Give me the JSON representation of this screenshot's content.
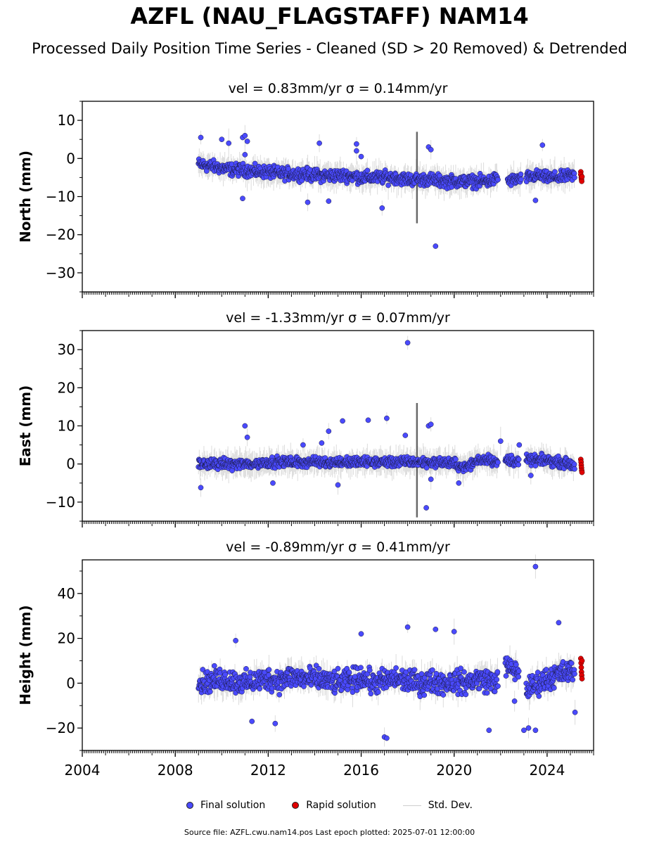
{
  "figure": {
    "title": "AZFL (NAU_FLAGSTAFF) NAM14",
    "subtitle": "Processed Daily Position Time Series - Cleaned (SD > 20 Removed) & Detrended",
    "footer": "Source file: AZFL.cwu.nam14.pos  Last epoch plotted: 2025-07-01 12:00:00"
  },
  "legend": [
    {
      "label": "Final solution",
      "color": "#4a4aff",
      "marker": "dot"
    },
    {
      "label": "Rapid solution",
      "color": "#e00000",
      "marker": "dot"
    },
    {
      "label": "Std. Dev.",
      "color": "#cfcfcf",
      "marker": "line"
    }
  ],
  "colors": {
    "final": "#4a4aff",
    "rapid": "#e00000",
    "stddev": "#9a9a9a",
    "outline": "#1a1a40"
  },
  "chart_data": [
    {
      "type": "scatter",
      "title": "vel = 0.83mm/yr   σ = 0.14mm/yr",
      "ylabel": "North (mm)",
      "xlim": [
        2004,
        2026
      ],
      "ylim": [
        -35,
        15
      ],
      "yticks": [
        "10",
        "0",
        "−10",
        "−20",
        "−30"
      ],
      "ytick_values": [
        10,
        0,
        -10,
        -20,
        -30
      ],
      "xticks": [
        2004,
        2008,
        2012,
        2016,
        2020,
        2024
      ],
      "show_xtick_labels": false,
      "series": [
        {
          "name": "Final solution",
          "segments": [
            {
              "x": [
                2009.0,
                2009.5,
                2010.0,
                2010.5,
                2011.0,
                2011.5,
                2012.0,
                2012.5,
                2013.0,
                2013.5,
                2014.0,
                2014.5,
                2015.0,
                2015.5,
                2016.0,
                2016.5,
                2017.0,
                2017.5,
                2018.0,
                2018.5,
                2019.0,
                2019.5,
                2020.0,
                2020.5,
                2021.0,
                2021.5,
                2021.9
              ],
              "y": [
                -1.5,
                -2,
                -2.5,
                -3,
                -3,
                -3.5,
                -3.5,
                -4,
                -4,
                -4,
                -4.5,
                -4.5,
                -4.5,
                -4.5,
                -5,
                -5,
                -5,
                -5,
                -5.5,
                -5.5,
                -5.5,
                -6,
                -6,
                -6,
                -6,
                -6,
                -5
              ],
              "spread": 2.2
            },
            {
              "x": [
                2022.3,
                2022.6,
                2022.9
              ],
              "y": [
                -6,
                -5.5,
                -5.5
              ],
              "spread": 2.0
            },
            {
              "x": [
                2023.1,
                2023.6,
                2024.0,
                2024.5,
                2025.0,
                2025.2
              ],
              "y": [
                -5,
                -4.5,
                -5,
                -5,
                -4.5,
                -4.5
              ],
              "spread": 2.0
            }
          ],
          "outliers": [
            [
              2009.1,
              5.5
            ],
            [
              2010.0,
              5
            ],
            [
              2010.3,
              4
            ],
            [
              2010.9,
              5.5
            ],
            [
              2011.0,
              6
            ],
            [
              2011.1,
              4.5
            ],
            [
              2011.0,
              1
            ],
            [
              2010.9,
              -10.5
            ],
            [
              2014.2,
              4
            ],
            [
              2015.8,
              3.8
            ],
            [
              2015.8,
              2
            ],
            [
              2016.0,
              0.5
            ],
            [
              2016.9,
              -13
            ],
            [
              2018.9,
              3
            ],
            [
              2019.0,
              2.3
            ],
            [
              2019.2,
              -23
            ],
            [
              2013.7,
              -11.5
            ],
            [
              2014.6,
              -11.2
            ],
            [
              2023.8,
              3.5
            ],
            [
              2023.5,
              -11
            ]
          ]
        },
        {
          "name": "Rapid solution",
          "x": [
            2025.45,
            2025.45,
            2025.47,
            2025.48,
            2025.49,
            2025.5
          ],
          "y": [
            -3.5,
            -4.2,
            -5,
            -5.5,
            -6,
            -4.8
          ]
        }
      ],
      "stddev_spike": {
        "x": 2018.4,
        "ymin": -17,
        "ymax": 7
      }
    },
    {
      "type": "scatter",
      "title": "vel = -1.33mm/yr   σ = 0.07mm/yr",
      "ylabel": "East (mm)",
      "xlim": [
        2004,
        2026
      ],
      "ylim": [
        -15,
        35
      ],
      "yticks": [
        "30",
        "20",
        "10",
        "0",
        "−10"
      ],
      "ytick_values": [
        30,
        20,
        10,
        0,
        -10
      ],
      "xticks": [
        2004,
        2008,
        2012,
        2016,
        2020,
        2024
      ],
      "show_xtick_labels": false,
      "series": [
        {
          "name": "Final solution",
          "segments": [
            {
              "x": [
                2009.0,
                2009.5,
                2010.0,
                2010.5,
                2011.0,
                2011.5,
                2012.0,
                2012.5,
                2013.0,
                2013.5,
                2014.0,
                2014.5,
                2015.0,
                2015.5,
                2016.0,
                2016.5,
                2017.0,
                2017.5,
                2018.0,
                2018.5,
                2019.0,
                2019.5,
                2020.0,
                2020.5,
                2021.0,
                2021.5,
                2021.9
              ],
              "y": [
                0,
                0,
                0,
                0,
                0,
                0,
                0.5,
                0.5,
                0.5,
                0.5,
                0.5,
                0.5,
                0.5,
                0.5,
                0.5,
                0.5,
                0.5,
                0.5,
                0.5,
                0.5,
                0.5,
                0.5,
                0,
                -1,
                1,
                1.5,
                0
              ],
              "spread": 1.8
            },
            {
              "x": [
                2022.2,
                2022.5,
                2022.8
              ],
              "y": [
                1,
                1,
                0.5
              ],
              "spread": 2.0
            },
            {
              "x": [
                2023.1,
                2023.6,
                2024.0,
                2024.5,
                2025.0,
                2025.2
              ],
              "y": [
                1,
                1,
                1,
                0.5,
                0,
                -0.5
              ],
              "spread": 1.8
            }
          ],
          "outliers": [
            [
              2009.1,
              -6.2
            ],
            [
              2011.0,
              10
            ],
            [
              2011.1,
              7
            ],
            [
              2012.2,
              -5
            ],
            [
              2013.5,
              5
            ],
            [
              2014.3,
              5.5
            ],
            [
              2014.6,
              8.6
            ],
            [
              2015.2,
              11.3
            ],
            [
              2015.0,
              -5.5
            ],
            [
              2016.3,
              11.5
            ],
            [
              2017.1,
              12
            ],
            [
              2017.9,
              7.5
            ],
            [
              2018.0,
              31.8
            ],
            [
              2018.9,
              10
            ],
            [
              2019.0,
              10.4
            ],
            [
              2018.8,
              -11.5
            ],
            [
              2019.0,
              -4
            ],
            [
              2020.2,
              -5
            ],
            [
              2022.0,
              6
            ],
            [
              2022.8,
              5
            ],
            [
              2023.3,
              -3
            ]
          ]
        },
        {
          "name": "Rapid solution",
          "x": [
            2025.45,
            2025.46,
            2025.47,
            2025.48,
            2025.49,
            2025.5
          ],
          "y": [
            1.2,
            0.5,
            -0.3,
            -1,
            -1.7,
            -2.2
          ]
        }
      ],
      "stddev_spike": {
        "x": 2018.4,
        "ymin": -14,
        "ymax": 16
      }
    },
    {
      "type": "scatter",
      "title": "vel = -0.89mm/yr   σ = 0.41mm/yr",
      "ylabel": "Height (mm)",
      "xlim": [
        2004,
        2026
      ],
      "ylim": [
        -30,
        55
      ],
      "yticks": [
        "40",
        "20",
        "0",
        "−20"
      ],
      "ytick_values": [
        40,
        20,
        0,
        -20
      ],
      "xticks": [
        2004,
        2008,
        2012,
        2016,
        2020,
        2024
      ],
      "xtick_labels": [
        "2004",
        "2008",
        "2012",
        "2016",
        "2020",
        "2024"
      ],
      "show_xtick_labels": true,
      "series": [
        {
          "name": "Final solution",
          "segments": [
            {
              "x": [
                2009.0,
                2009.5,
                2010.0,
                2010.5,
                2011.0,
                2011.5,
                2012.0,
                2012.5,
                2013.0,
                2013.5,
                2014.0,
                2014.5,
                2015.0,
                2015.5,
                2016.0,
                2016.5,
                2017.0,
                2017.5,
                2018.0,
                2018.5,
                2019.0,
                2019.5,
                2020.0,
                2020.5,
                2021.0,
                2021.5,
                2021.9
              ],
              "y": [
                0,
                1,
                2,
                1,
                0,
                1,
                2,
                1,
                3,
                2,
                2,
                1,
                0,
                1,
                3,
                0,
                1,
                2,
                1,
                0,
                1,
                0,
                1,
                0,
                2,
                1,
                1
              ],
              "spread": 7
            },
            {
              "x": [
                2022.2,
                2022.5,
                2022.8
              ],
              "y": [
                8,
                6,
                5
              ],
              "spread": 6
            },
            {
              "x": [
                2023.1,
                2023.6,
                2024.0,
                2024.5,
                2025.0,
                2025.2
              ],
              "y": [
                -3,
                0,
                2,
                4,
                5,
                6
              ],
              "spread": 7
            }
          ],
          "outliers": [
            [
              2010.6,
              19
            ],
            [
              2011.3,
              -17
            ],
            [
              2012.3,
              -18
            ],
            [
              2016.0,
              22
            ],
            [
              2017.0,
              -24
            ],
            [
              2017.1,
              -24.5
            ],
            [
              2018.0,
              25
            ],
            [
              2019.2,
              24
            ],
            [
              2020.0,
              23
            ],
            [
              2021.5,
              -21
            ],
            [
              2022.6,
              -8
            ],
            [
              2023.0,
              -21
            ],
            [
              2023.2,
              -20
            ],
            [
              2023.5,
              -21
            ],
            [
              2023.5,
              52
            ],
            [
              2024.5,
              27
            ],
            [
              2025.2,
              -13
            ]
          ]
        },
        {
          "name": "Rapid solution",
          "x": [
            2025.45,
            2025.46,
            2025.47,
            2025.48,
            2025.49,
            2025.5,
            2025.5
          ],
          "y": [
            11,
            9,
            7,
            5,
            3.5,
            2,
            10
          ]
        }
      ],
      "stddev_spike": null
    }
  ]
}
